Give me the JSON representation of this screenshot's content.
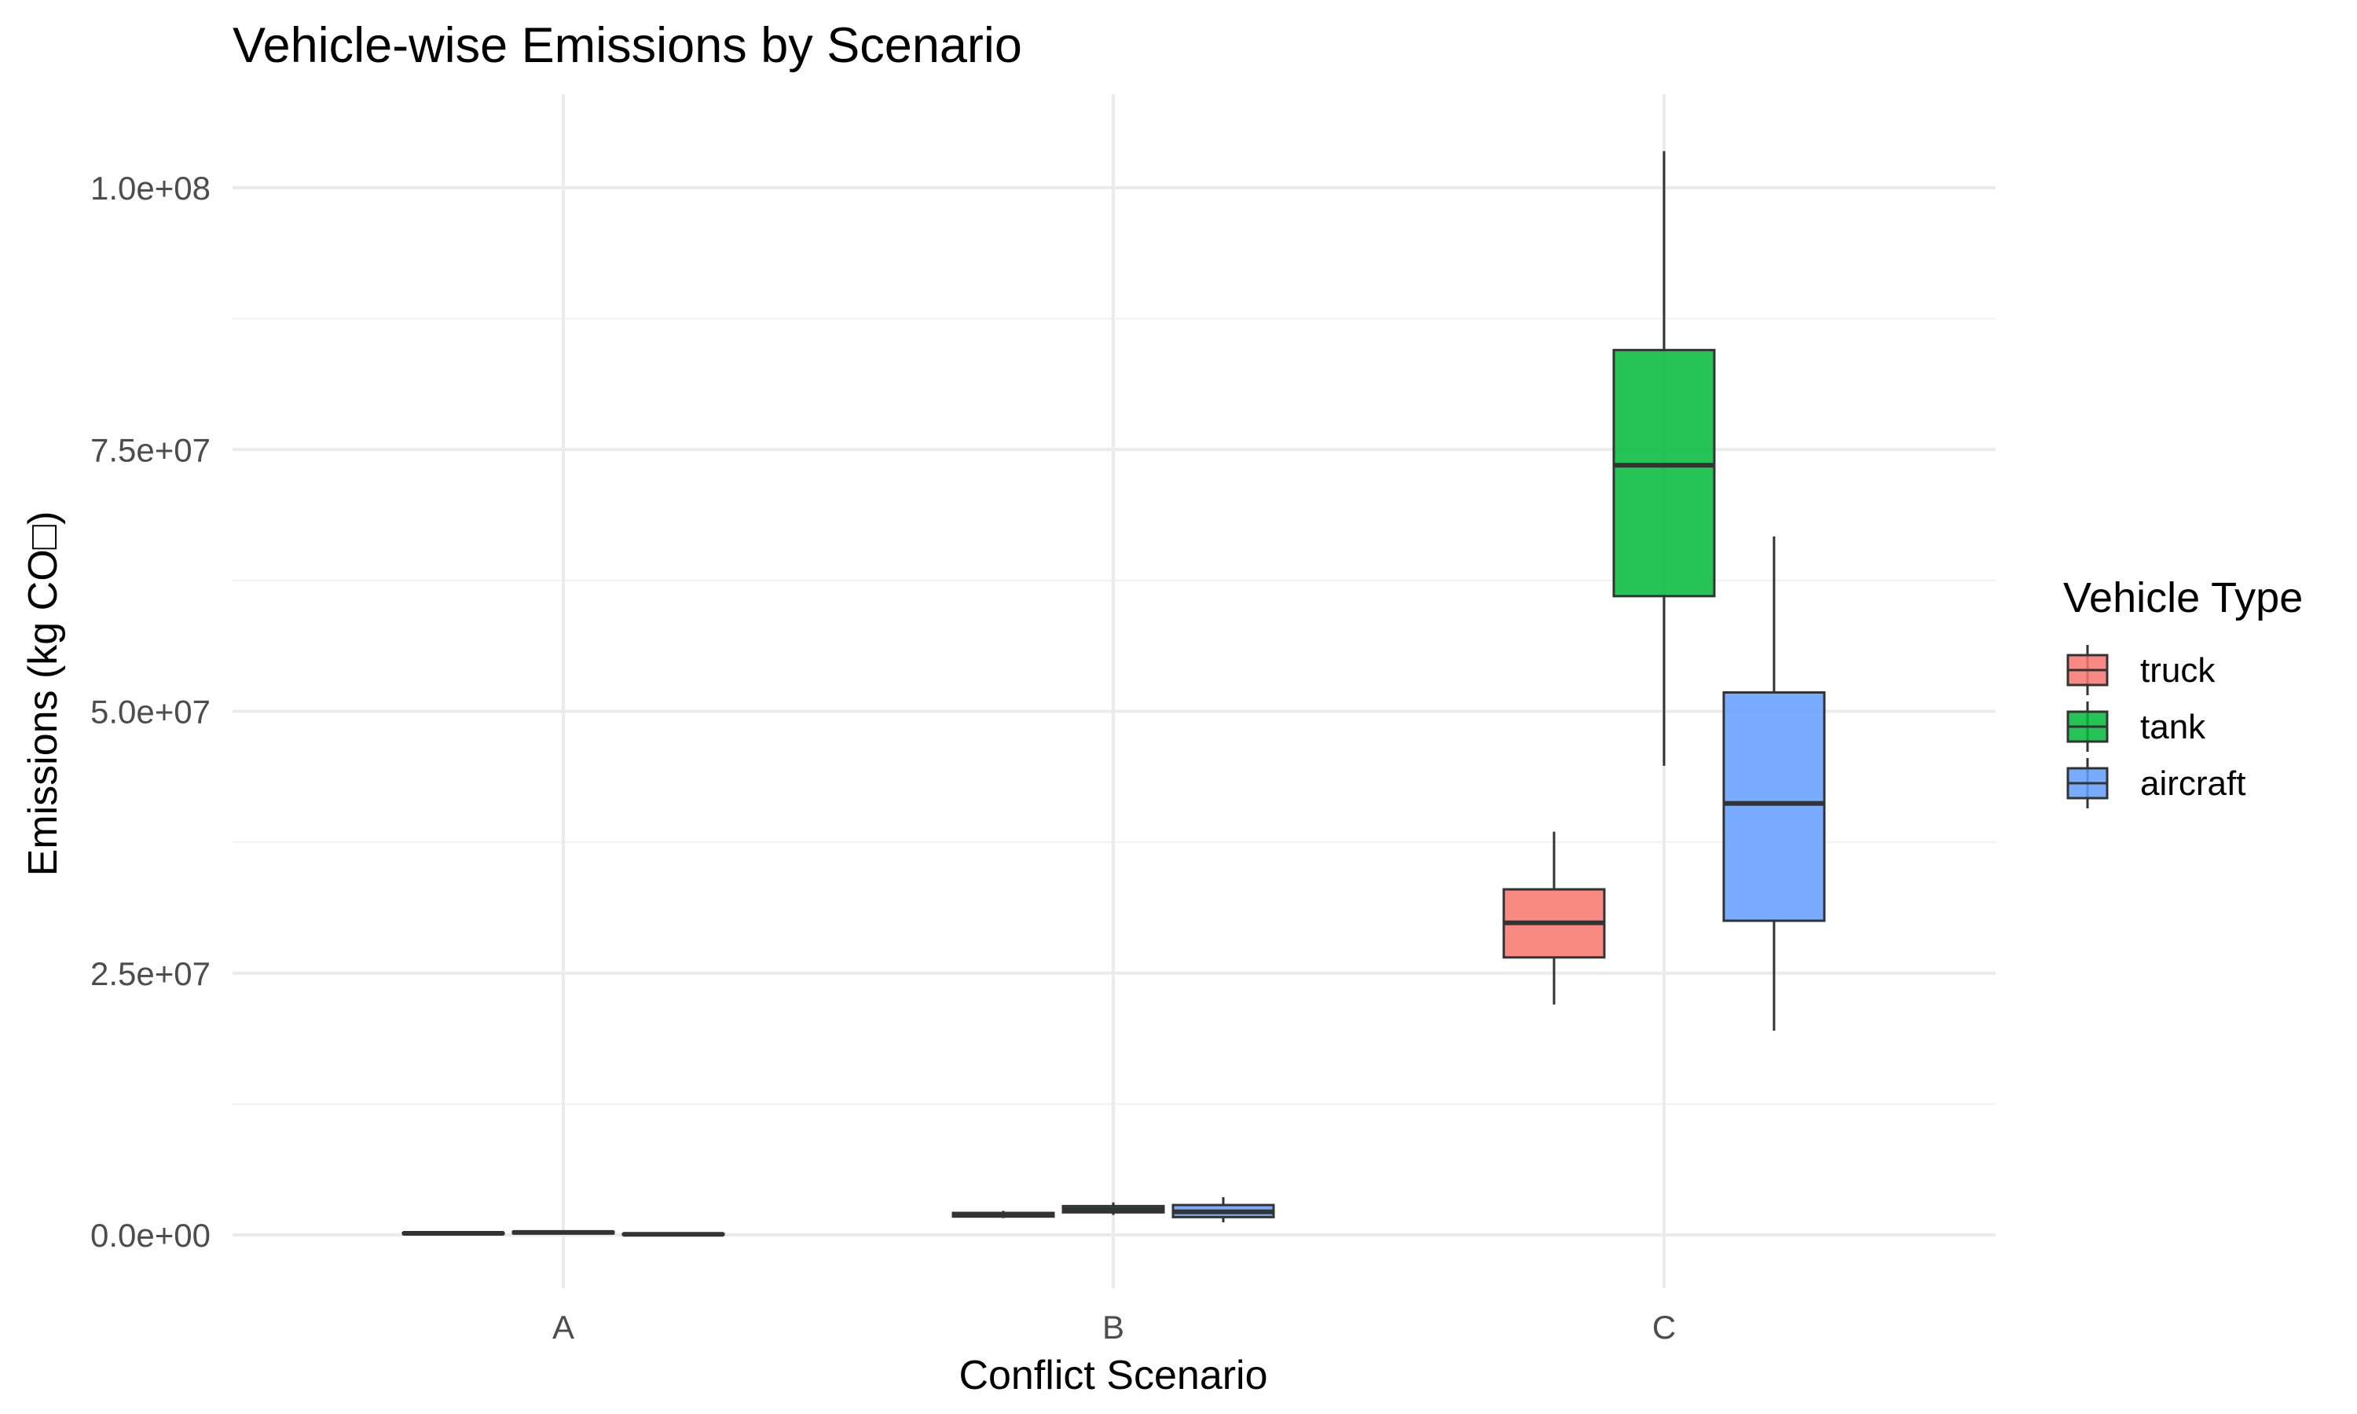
{
  "chart_data": {
    "type": "boxplot",
    "title": "Vehicle-wise Emissions by Scenario",
    "xlabel": "Conflict Scenario",
    "ylabel": "Emissions (kg CO□)",
    "categories": [
      "A",
      "B",
      "C"
    ],
    "ylim": [
      -4000000,
      108500000
    ],
    "y_ticks": [
      0,
      25000000,
      50000000,
      75000000,
      100000000
    ],
    "y_tick_labels": [
      "0.0e+00",
      "2.5e+07",
      "5.0e+07",
      "7.5e+07",
      "1.0e+08"
    ],
    "grid": true,
    "legend_title": "Vehicle Type",
    "legend_position": "right",
    "series": [
      {
        "name": "truck",
        "color": "#F8766D",
        "boxes": [
          {
            "category": "A",
            "min": 50000,
            "q1": 100000,
            "median": 150000,
            "q3": 200000,
            "max": 250000
          },
          {
            "category": "B",
            "min": 1600000,
            "q1": 1750000,
            "median": 1950000,
            "q3": 2100000,
            "max": 2300000
          },
          {
            "category": "C",
            "min": 22000000,
            "q1": 26500000,
            "median": 29800000,
            "q3": 33000000,
            "max": 38500000
          }
        ]
      },
      {
        "name": "tank",
        "color": "#00BA38",
        "boxes": [
          {
            "category": "A",
            "min": 100000,
            "q1": 150000,
            "median": 230000,
            "q3": 300000,
            "max": 380000
          },
          {
            "category": "B",
            "min": 1900000,
            "q1": 2150000,
            "median": 2400000,
            "q3": 2750000,
            "max": 3100000
          },
          {
            "category": "C",
            "min": 44800000,
            "q1": 61000000,
            "median": 73500000,
            "q3": 84500000,
            "max": 103500000
          }
        ]
      },
      {
        "name": "aircraft",
        "color": "#619CFF",
        "boxes": [
          {
            "category": "A",
            "min": 0,
            "q1": 20000,
            "median": 60000,
            "q3": 100000,
            "max": 150000
          },
          {
            "category": "B",
            "min": 1200000,
            "q1": 1700000,
            "median": 2200000,
            "q3": 2850000,
            "max": 3600000
          },
          {
            "category": "C",
            "min": 19500000,
            "q1": 30000000,
            "median": 41200000,
            "q3": 51800000,
            "max": 66700000
          }
        ]
      }
    ]
  }
}
